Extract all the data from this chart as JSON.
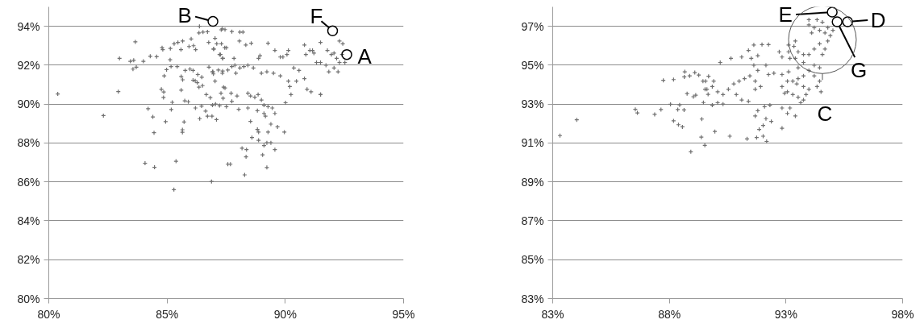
{
  "chart_data": [
    {
      "type": "scatter",
      "marker": "cross",
      "grid": "y",
      "xlim": [
        80,
        95
      ],
      "xticks": [
        {
          "value": 80,
          "label": "80%"
        },
        {
          "value": 85,
          "label": "85%"
        },
        {
          "value": 90,
          "label": "90%"
        },
        {
          "value": 95,
          "label": "95%"
        }
      ],
      "ylim": [
        80,
        95
      ],
      "yticks": [
        {
          "value": 80,
          "label": "80%"
        },
        {
          "value": 82,
          "label": "82%"
        },
        {
          "value": 84,
          "label": "84%"
        },
        {
          "value": 86,
          "label": "86%"
        },
        {
          "value": 88,
          "label": "88%"
        },
        {
          "value": 90,
          "label": "90%"
        },
        {
          "value": 92,
          "label": "92%"
        },
        {
          "value": 94,
          "label": "94%"
        }
      ],
      "series": [
        {
          "color": "#707070",
          "x": [
            80.38,
            82.31,
            82.94,
            82.99,
            83.45,
            83.59,
            83.56,
            83.7,
            83.66,
            84.0,
            84.2,
            84.29,
            84.56,
            84.4,
            84.45,
            84.07,
            84.47,
            85.38,
            85.29,
            86.88,
            84.79,
            84.82,
            84.76,
            84.86,
            84.85,
            84.94,
            85.13,
            85.17,
            85.43,
            84.88,
            84.98,
            85.18,
            85.22,
            85.65,
            85.65,
            85.72,
            85.75,
            85.9,
            85.6,
            85.66,
            85.6,
            85.14,
            85.3,
            85.46,
            85.59,
            85.66,
            86.02,
            86.12,
            85.93,
            86.21,
            85.77,
            85.97,
            86.1,
            86.1,
            86.19,
            86.28,
            86.35,
            86.5,
            86.37,
            86.35,
            86.52,
            86.71,
            86.47,
            86.3,
            86.2,
            86.38,
            86.46,
            86.63,
            86.71,
            86.9,
            87.09,
            86.66,
            86.83,
            86.92,
            87.22,
            86.76,
            86.97,
            87.03,
            87.1,
            87.29,
            86.77,
            86.92,
            87.03,
            86.96,
            87.22,
            87.35,
            87.35,
            87.44,
            87.28,
            87.39,
            87.37,
            87.34,
            87.45,
            87.74,
            88.08,
            88.21,
            86.97,
            87.3,
            87.51,
            88.06,
            88.33,
            88.56,
            87.26,
            87.36,
            87.83,
            87.87,
            86.94,
            87.17,
            87.34,
            87.57,
            87.74,
            87.91,
            88.08,
            88.25,
            88.42,
            88.65,
            88.99,
            89.22,
            88.93,
            88.87,
            89.27,
            89.56,
            89.9,
            90.13,
            87.45,
            87.71,
            87.96,
            87.74,
            87.05,
            87.51,
            88.03,
            88.42,
            88.53,
            88.71,
            88.85,
            88.99,
            89.1,
            89.27,
            89.45,
            88.42,
            88.82,
            89.1,
            89.16,
            89.56,
            90.01,
            88.53,
            88.82,
            88.87,
            89.27,
            89.39,
            89.67,
            89.96,
            88.59,
            88.87,
            89.1,
            89.22,
            89.39,
            89.56,
            89.04,
            88.17,
            88.36,
            88.34,
            87.57,
            87.68,
            88.28,
            89.22,
            89.5,
            89.79,
            90.13,
            90.19,
            90.24,
            90.47,
            90.81,
            90.92,
            91.09,
            91.49,
            89.79,
            90.07,
            90.36,
            90.58,
            90.87,
            91.04,
            91.21,
            90.81,
            91.15,
            91.32,
            91.49,
            91.72,
            91.84,
            92.06,
            91.49,
            91.78,
            91.95,
            92.17,
            92.29,
            92.06,
            92.4,
            92.52,
            92.23,
            92.29,
            92.43,
            91.49
          ],
          "values": [
            90.52,
            89.41,
            90.64,
            92.35,
            92.2,
            92.25,
            91.8,
            91.9,
            93.2,
            92.2,
            89.76,
            92.46,
            92.44,
            89.34,
            88.53,
            86.96,
            86.75,
            87.06,
            85.6,
            86.02,
            92.9,
            92.8,
            90.76,
            90.62,
            90.34,
            89.1,
            92.28,
            91.93,
            91.93,
            91.45,
            91.77,
            89.72,
            90.09,
            88.55,
            88.68,
            89.08,
            90.17,
            90.12,
            90.72,
            91.25,
            91.42,
            92.86,
            93.1,
            93.17,
            92.8,
            93.24,
            93.35,
            93.0,
            92.96,
            92.8,
            91.73,
            91.8,
            91.73,
            91.23,
            91.2,
            91.1,
            90.87,
            90.95,
            94.0,
            93.66,
            93.7,
            93.72,
            91.38,
            91.52,
            89.8,
            89.25,
            89.9,
            89.64,
            89.38,
            89.38,
            89.2,
            90.49,
            90.33,
            89.94,
            89.92,
            93.17,
            92.83,
            93.38,
            93.1,
            93.82,
            91.9,
            91.66,
            91.18,
            91.55,
            92.55,
            92.35,
            91.7,
            92.9,
            90.56,
            90.87,
            90.3,
            93.87,
            93.83,
            93.73,
            93.7,
            93.7,
            92.83,
            93.1,
            92.9,
            93.24,
            93.04,
            93.13,
            92.55,
            92.35,
            92.35,
            92.0,
            91.66,
            91.75,
            91.59,
            91.75,
            91.93,
            91.59,
            91.86,
            91.93,
            92.0,
            91.86,
            91.59,
            91.66,
            92.49,
            92.35,
            93.13,
            92.76,
            92.42,
            92.76,
            90.83,
            90.56,
            90.42,
            90.14,
            90.0,
            89.87,
            89.73,
            90.56,
            90.42,
            90.35,
            90.49,
            90.21,
            89.94,
            89.87,
            89.8,
            89.8,
            89.66,
            89.52,
            89.38,
            89.52,
            90.07,
            89.11,
            88.7,
            88.56,
            88.56,
            88.97,
            88.83,
            88.56,
            88.28,
            88.14,
            87.87,
            88.01,
            88.01,
            87.66,
            87.39,
            87.73,
            87.66,
            87.29,
            86.91,
            86.91,
            86.36,
            86.74,
            91.59,
            91.45,
            91.18,
            90.9,
            90.49,
            91.18,
            91.31,
            90.76,
            90.63,
            90.49,
            92.42,
            92.55,
            91.86,
            91.73,
            92.55,
            92.76,
            92.62,
            93.04,
            92.76,
            92.14,
            92.14,
            92.0,
            91.66,
            91.86,
            93.17,
            92.76,
            92.55,
            92.35,
            92.14,
            92.62,
            92.55,
            92.14,
            91.66,
            93.24,
            93.1,
            90.49
          ]
        }
      ],
      "annotations": [
        {
          "text": "B",
          "x": 86.94,
          "y": 94.25
        },
        {
          "text": "F",
          "x": 92.0,
          "y": 93.77
        },
        {
          "text": "A",
          "x": 92.6,
          "y": 92.55
        }
      ]
    },
    {
      "type": "scatter",
      "marker": "cross",
      "grid": "y",
      "xlim": [
        83,
        98
      ],
      "xticks": [
        {
          "value": 83,
          "label": "83%"
        },
        {
          "value": 88,
          "label": "88%"
        },
        {
          "value": 93,
          "label": "93%"
        },
        {
          "value": 98,
          "label": "98%"
        }
      ],
      "ylim": [
        83,
        98
      ],
      "yticks": [
        {
          "value": 83,
          "label": "83%"
        },
        {
          "value": 85,
          "label": "85%"
        },
        {
          "value": 87,
          "label": "87%"
        },
        {
          "value": 89,
          "label": "89%"
        },
        {
          "value": 91,
          "label": "91%"
        },
        {
          "value": 93,
          "label": "93%"
        },
        {
          "value": 95,
          "label": "95%"
        },
        {
          "value": 97,
          "label": "97%"
        }
      ],
      "series": [
        {
          "color": "#707070",
          "x": [
            83.31,
            84.03,
            86.54,
            86.63,
            87.37,
            87.64,
            87.74,
            88.05,
            88.18,
            88.18,
            88.36,
            88.39,
            88.44,
            88.56,
            88.63,
            88.64,
            88.66,
            88.76,
            88.87,
            88.92,
            89.03,
            89.09,
            89.13,
            89.26,
            89.37,
            89.39,
            89.44,
            89.46,
            89.53,
            89.52,
            89.66,
            89.68,
            89.95,
            90.59,
            91.33,
            91.74,
            92.02,
            92.17,
            91.85,
            92.02,
            92.83,
            92.37,
            92.14,
            89.55,
            89.61,
            89.9,
            90.18,
            90.64,
            91.1,
            91.62,
            91.97,
            92.25,
            91.39,
            91.79,
            92.14,
            91.51,
            91.62,
            91.79,
            92.25,
            92.48,
            92.71,
            92.83,
            93.11,
            93.4,
            92.83,
            93.11,
            93.06,
            89.84,
            90.07,
            90.3,
            90.53,
            90.76,
            90.99,
            91.22,
            91.45,
            91.68,
            90.87,
            91.1,
            91.39,
            90.07,
            89.84,
            90.3,
            91.68,
            91.91,
            91.79,
            91.68,
            92.08,
            92.31,
            92.83,
            93.06,
            93.29,
            93.52,
            93.75,
            92.83,
            93.06,
            93.17,
            93.4,
            93.63,
            93.86,
            93.98,
            92.94,
            93.29,
            93.46,
            93.52,
            93.75,
            93.52,
            93.75,
            93.98,
            94.21,
            94.44,
            94.21,
            94.44,
            93.98,
            93.75,
            94.21,
            94.44,
            93.52,
            93.4,
            94.1,
            93.98,
            94.21,
            94.44,
            94.67,
            94.9,
            94.79,
            94.56,
            94.33,
            93.98,
            94.79,
            95.01,
            94.56,
            94.67,
            94.33,
            94.5,
            93.75,
            93.17,
            93.11,
            93.34
          ],
          "values": [
            91.38,
            92.19,
            92.73,
            92.55,
            92.47,
            92.72,
            94.22,
            92.99,
            94.26,
            92.14,
            92.72,
            91.94,
            92.96,
            91.83,
            92.7,
            94.4,
            94.66,
            93.54,
            94.45,
            90.55,
            93.38,
            94.62,
            93.46,
            94.49,
            91.3,
            92.23,
            94.18,
            93.08,
            93.76,
            90.88,
            93.5,
            94.43,
            91.59,
            91.35,
            91.21,
            91.28,
            91.35,
            91.08,
            91.7,
            91.9,
            91.76,
            92.11,
            92.25,
            94.18,
            93.76,
            94.18,
            95.14,
            95.35,
            95.42,
            96.04,
            96.06,
            96.06,
            95.76,
            95.49,
            95.0,
            95.35,
            95.0,
            94.73,
            94.52,
            94.59,
            95.69,
            95.42,
            96.04,
            96.24,
            94.52,
            94.66,
            94.18,
            93.9,
            93.63,
            93.49,
            93.76,
            94.04,
            94.18,
            94.31,
            94.45,
            94.18,
            93.49,
            93.21,
            93.14,
            93.07,
            92.94,
            93.0,
            93.76,
            93.9,
            92.66,
            92.39,
            92.87,
            92.94,
            93.9,
            93.63,
            93.49,
            93.35,
            93.21,
            92.8,
            92.52,
            92.8,
            92.39,
            93.07,
            93.49,
            93.76,
            93.56,
            94.18,
            94.04,
            94.31,
            94.45,
            94.87,
            95.14,
            94.73,
            94.45,
            94.18,
            95.0,
            94.87,
            95.55,
            95.55,
            95.83,
            96.1,
            95.69,
            95.35,
            96.66,
            97.07,
            96.93,
            96.79,
            96.66,
            96.52,
            96.93,
            97.21,
            97.34,
            97.34,
            96.24,
            96.79,
            95.55,
            95.83,
            93.9,
            93.63,
            93.9,
            95.35,
            95.69,
            95.97
          ]
        }
      ],
      "annotations": [
        {
          "text": "E",
          "x": 94.98,
          "y": 97.73
        },
        {
          "text": "D",
          "x": 95.64,
          "y": 97.23
        },
        {
          "text": "G",
          "x": 95.19,
          "y": 97.23
        },
        {
          "text": "C",
          "x": 94.56,
          "y": 96.31
        }
      ]
    }
  ]
}
